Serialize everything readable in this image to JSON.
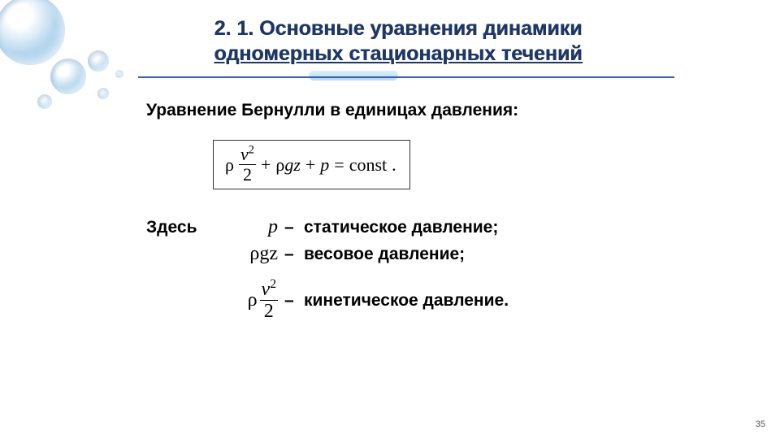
{
  "title_line1": "2. 1. Основные уравнения динамики",
  "title_line2": "одномерных стационарных течений",
  "subtitle": "Уравнение Бернулли в единицах давления:",
  "equation": {
    "rho": "ρ",
    "v": "v",
    "sq": "2",
    "den": "2",
    "plus1": "+",
    "rhogz": "ρgz",
    "plus2": "+",
    "p": "p",
    "eq": "=",
    "const": "const",
    "dot": "."
  },
  "defs": {
    "here": "Здесь",
    "p_sym": "p",
    "p_text": "статическое давление;",
    "rhogz_sym": "ρgz",
    "rhogz_text": "весовое давление;",
    "kin_rho": "ρ",
    "kin_v": "v",
    "kin_sq": "2",
    "kin_den": "2",
    "kin_text": "кинетическое давление.",
    "dash": "–"
  },
  "page": "35",
  "colors": {
    "title": "#1f3763",
    "rule": "#3b5ea3",
    "pill_top": "#d7eefb",
    "pill_bot": "#a9d5f3",
    "text": "#000000",
    "bg": "#ffffff"
  }
}
